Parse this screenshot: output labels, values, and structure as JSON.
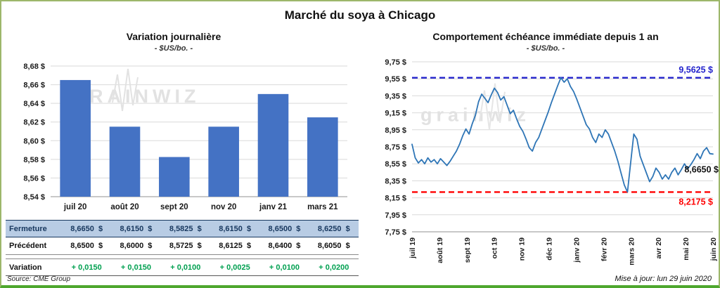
{
  "page": {
    "title": "Marché du soya à Chicago",
    "source": "Source: CME Group",
    "updated": "Mise à jour: lun 29 juin 2020",
    "border_green": "#4EA72E"
  },
  "left": {
    "title": "Variation journalière",
    "subtitle": "- $US/bo. -",
    "watermark": "GRAINWIZ",
    "table": {
      "rows": [
        {
          "label": "Fermeture",
          "class": "fermeture",
          "values": [
            "8,6650  $",
            "8,6150  $",
            "8,5825  $",
            "8,6150  $",
            "8,6500  $",
            "8,6250  $"
          ]
        },
        {
          "label": "Précédent",
          "class": "precedent",
          "values": [
            "8,6500  $",
            "8,6000  $",
            "8,5725  $",
            "8,6125  $",
            "8,6400  $",
            "8,6050  $"
          ]
        },
        {
          "label": "Variation",
          "class": "variation",
          "values": [
            "+ 0,0150",
            "+ 0,0150",
            "+ 0,0100",
            "+ 0,0025",
            "+ 0,0100",
            "+ 0,0200"
          ]
        }
      ]
    }
  },
  "right": {
    "title": "Comportement échéance immédiate depuis 1 an",
    "subtitle": "- $US/bo. -",
    "watermark": "grainwiz"
  },
  "chart_data": [
    {
      "type": "bar",
      "title": "Variation journalière",
      "ylabel": "$US/bo.",
      "categories": [
        "juil 20",
        "août 20",
        "sept 20",
        "nov 20",
        "janv 21",
        "mars 21"
      ],
      "values": [
        8.665,
        8.615,
        8.5825,
        8.615,
        8.65,
        8.625
      ],
      "ylim": [
        8.54,
        8.68
      ],
      "ytick_step": 0.02,
      "bar_color": "#4472C4",
      "grid": true,
      "legend": false
    },
    {
      "type": "line",
      "title": "Comportement échéance immédiate depuis 1 an",
      "ylabel": "$US/bo.",
      "x_labels": [
        "juil 19",
        "août 19",
        "sept 19",
        "oct 19",
        "nov 19",
        "déc 19",
        "janv 20",
        "févr 20",
        "mars 20",
        "avr 20",
        "mai 20",
        "juin 20"
      ],
      "ylim": [
        7.75,
        9.75
      ],
      "ytick_step": 0.2,
      "line_color": "#2E75B6",
      "grid": true,
      "legend": false,
      "high_line": {
        "value": 9.5625,
        "label": "9,5625 $",
        "color": "#2222CC"
      },
      "low_line": {
        "value": 8.2175,
        "label": "8,2175 $",
        "color": "#FF0000"
      },
      "last_value": 8.665,
      "last_value_label": "8,6650 $",
      "values": [
        8.78,
        8.62,
        8.56,
        8.6,
        8.55,
        8.62,
        8.57,
        8.6,
        8.55,
        8.61,
        8.57,
        8.53,
        8.58,
        8.64,
        8.7,
        8.78,
        8.88,
        8.96,
        8.9,
        9.02,
        9.12,
        9.28,
        9.37,
        9.32,
        9.27,
        9.36,
        9.44,
        9.39,
        9.3,
        9.34,
        9.24,
        9.14,
        9.18,
        9.08,
        8.99,
        8.93,
        8.84,
        8.74,
        8.7,
        8.8,
        8.86,
        8.96,
        9.06,
        9.16,
        9.27,
        9.37,
        9.47,
        9.5625,
        9.51,
        9.55,
        9.46,
        9.4,
        9.31,
        9.21,
        9.11,
        9.01,
        8.96,
        8.86,
        8.8,
        8.9,
        8.86,
        8.95,
        8.9,
        8.8,
        8.7,
        8.58,
        8.44,
        8.3,
        8.2175,
        8.56,
        8.9,
        8.84,
        8.64,
        8.54,
        8.44,
        8.34,
        8.4,
        8.5,
        8.45,
        8.37,
        8.42,
        8.37,
        8.45,
        8.5,
        8.42,
        8.48,
        8.55,
        8.49,
        8.54,
        8.6,
        8.67,
        8.61,
        8.7,
        8.74,
        8.67,
        8.665
      ]
    }
  ]
}
